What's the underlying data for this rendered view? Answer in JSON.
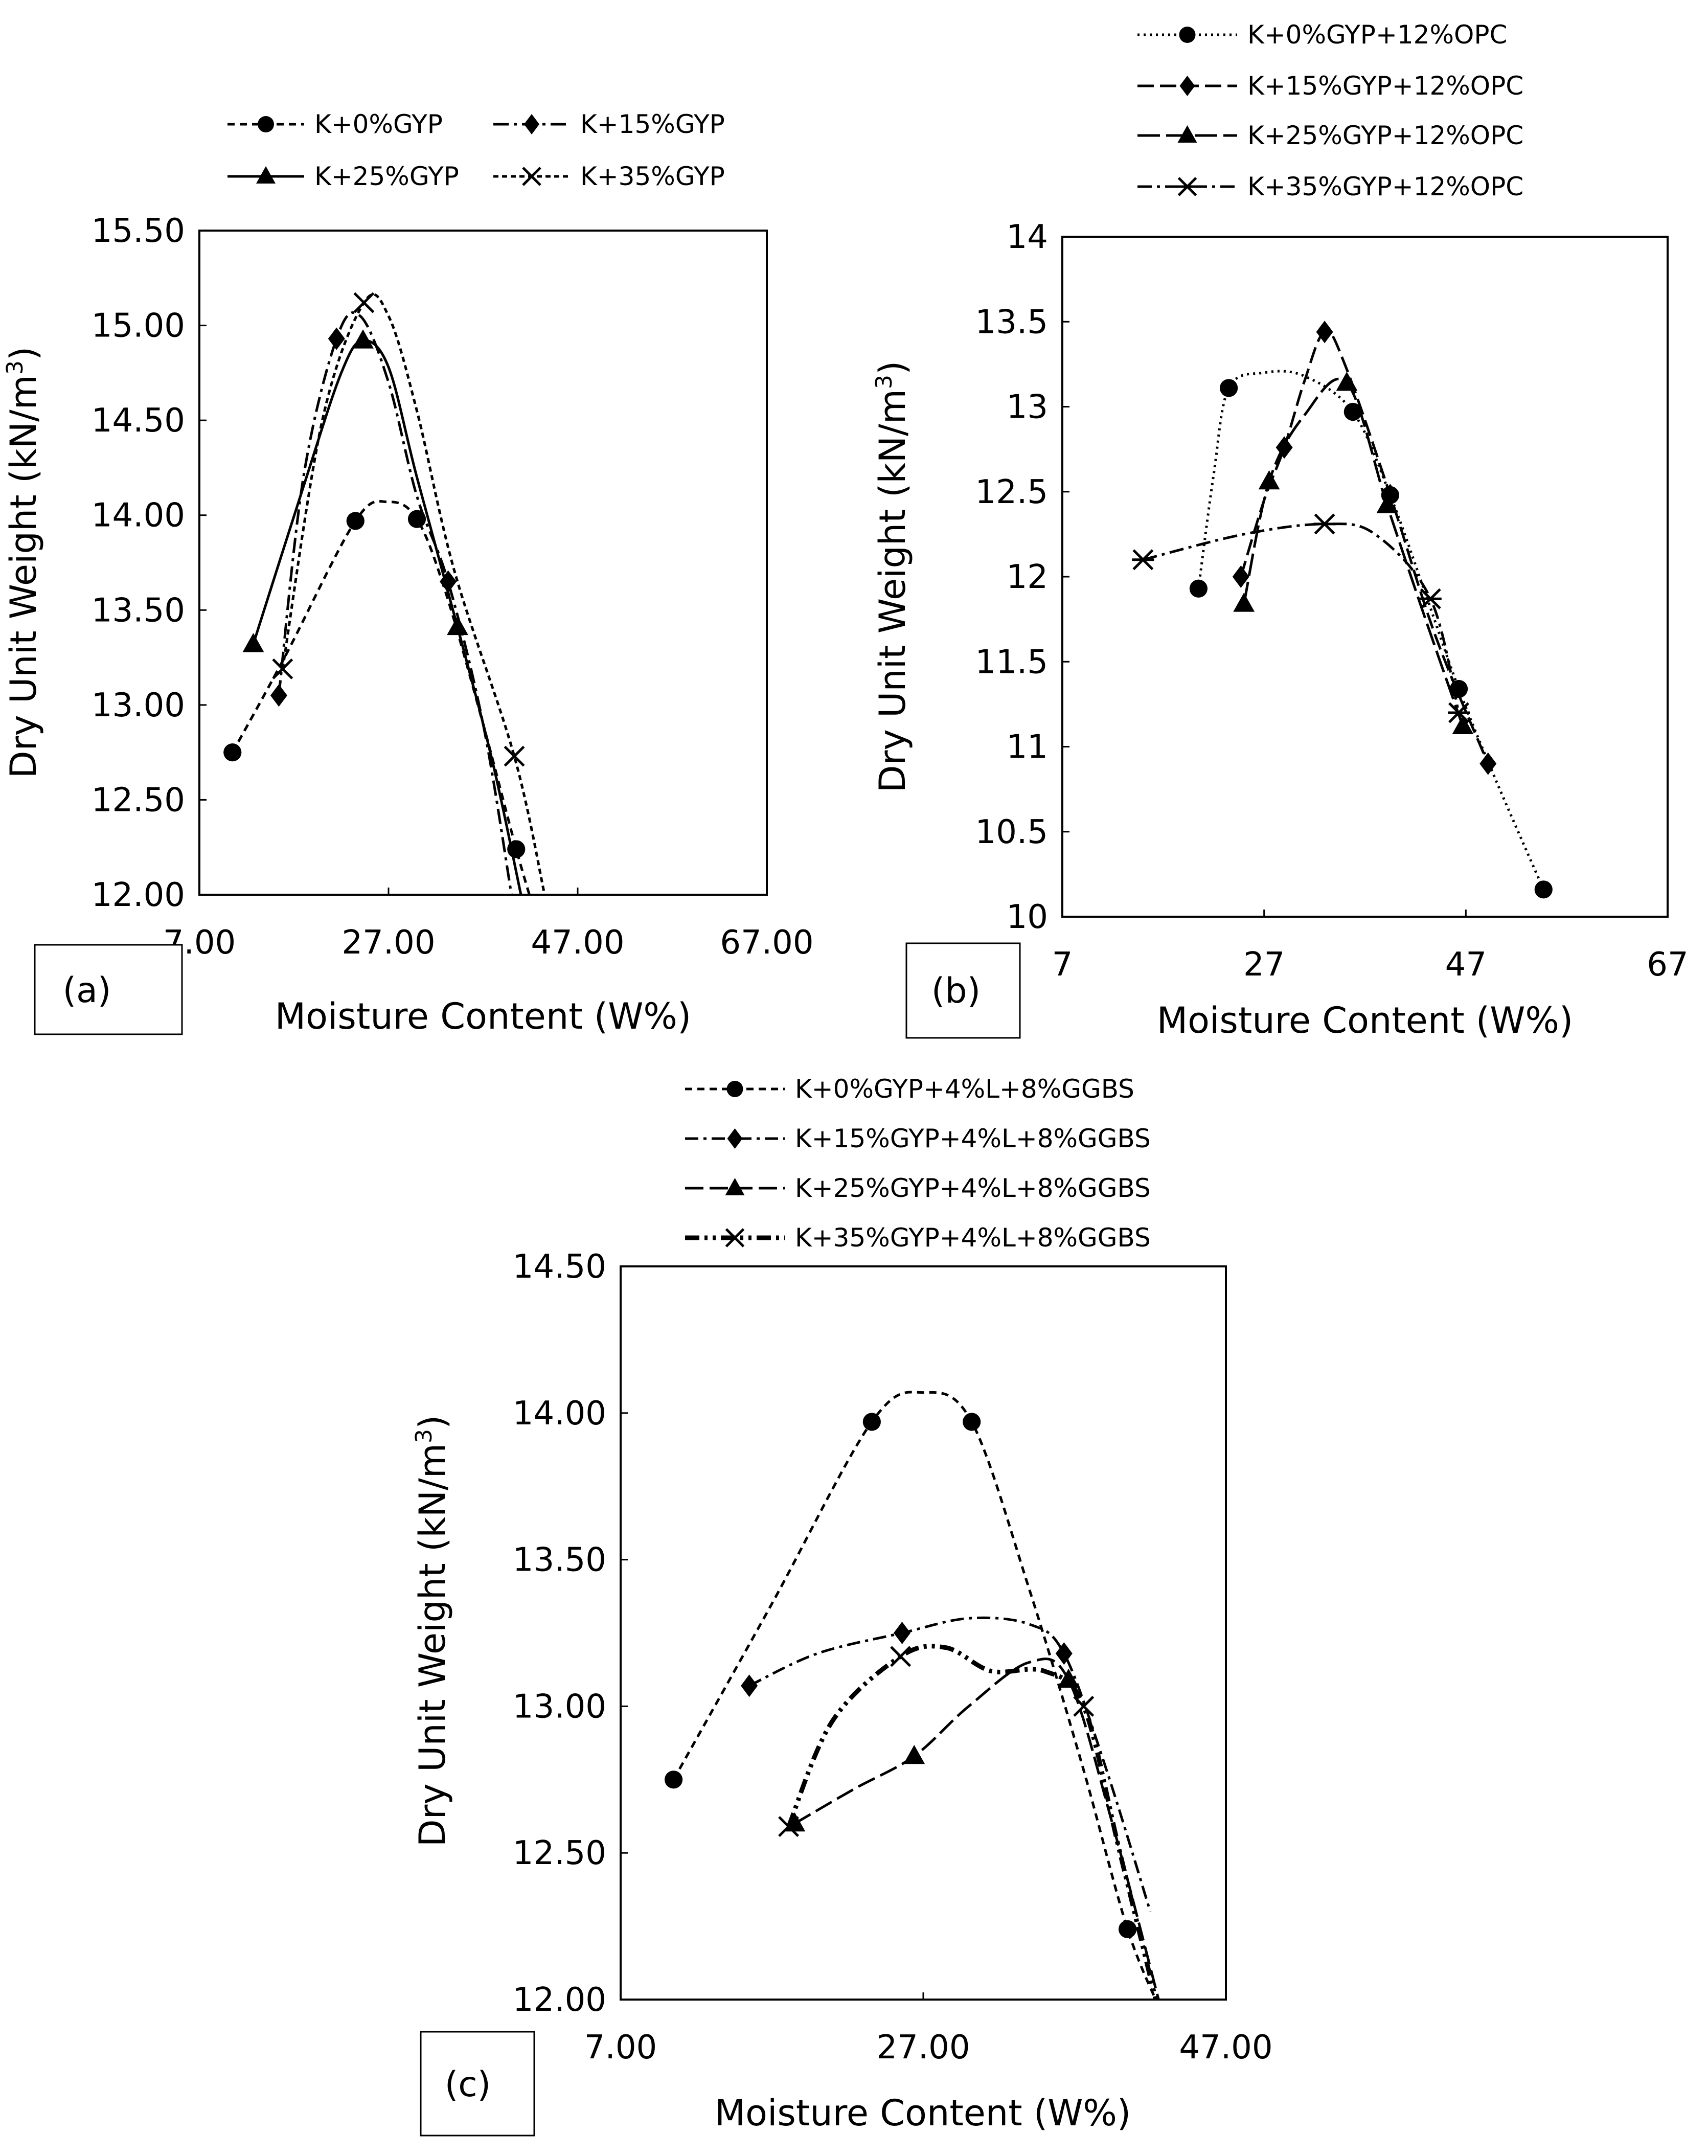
{
  "chart_data": [
    {
      "type": "line",
      "panel_label": "(a)",
      "xlabel": "Moisture Content (W%)",
      "ylabel_main": "Dry Unit Weight (kN/m",
      "ylabel_sup": "3",
      "ylabel_end": ")",
      "xlim": [
        7,
        67
      ],
      "ylim": [
        12,
        15.5
      ],
      "xticks": [
        "7.00",
        "27.00",
        "47.00",
        "67.00"
      ],
      "yticks": [
        "12.00",
        "12.50",
        "13.00",
        "13.50",
        "14.00",
        "14.50",
        "15.00",
        "15.50"
      ],
      "series": [
        {
          "name": "K+0%GYP",
          "marker": "circle",
          "dash": "14,10",
          "x": [
            10.5,
            23.5,
            30,
            40.5
          ],
          "y": [
            12.75,
            13.97,
            13.98,
            12.24
          ]
        },
        {
          "name": "K+15%GYP",
          "marker": "diamond",
          "dash": "30,10,6,10",
          "x": [
            15.4,
            21.5,
            33.3
          ],
          "y": [
            13.05,
            14.93,
            13.65
          ]
        },
        {
          "name": "K+25%GYP",
          "marker": "triangle",
          "dash": "",
          "x": [
            12.7,
            24.3,
            34.3
          ],
          "y": [
            13.32,
            14.92,
            13.41
          ]
        },
        {
          "name": "K+35%GYP",
          "marker": "x",
          "dash": "10,7",
          "x": [
            15.8,
            24.4,
            40.3
          ],
          "y": [
            13.19,
            15.12,
            12.73
          ]
        }
      ],
      "curves": [
        {
          "dash": "14,10",
          "x": [
            10.5,
            16,
            23.5,
            27,
            30,
            33,
            37,
            40.5,
            42.5
          ],
          "y": [
            12.75,
            13.25,
            13.97,
            14.07,
            13.98,
            13.6,
            12.9,
            12.24,
            11.9
          ]
        },
        {
          "dash": "30,10,6,10",
          "x": [
            15.4,
            18,
            21.5,
            24,
            27,
            30,
            33.3,
            37,
            40
          ],
          "y": [
            13.05,
            14.2,
            14.93,
            15.05,
            14.7,
            14.1,
            13.65,
            12.9,
            12.0
          ]
        },
        {
          "dash": "",
          "x": [
            12.7,
            18,
            22,
            24.3,
            27,
            30,
            34.3,
            38,
            41
          ],
          "y": [
            13.32,
            14.15,
            14.75,
            14.92,
            14.78,
            14.2,
            13.41,
            12.7,
            12.0
          ]
        },
        {
          "dash": "10,7",
          "x": [
            15.8,
            20,
            24.4,
            27,
            30,
            34,
            40.3,
            43.5
          ],
          "y": [
            13.19,
            14.5,
            15.12,
            15.05,
            14.55,
            13.7,
            12.73,
            12.0
          ]
        }
      ]
    },
    {
      "type": "line",
      "panel_label": "(b)",
      "xlabel": "Moisture Content (W%)",
      "ylabel_main": "Dry Unit Weight (kN/m",
      "ylabel_sup": "3",
      "ylabel_end": ")",
      "xlim": [
        7,
        67
      ],
      "ylim": [
        10,
        14
      ],
      "xticks": [
        "7",
        "27",
        "47",
        "67"
      ],
      "yticks": [
        "10",
        "10.5",
        "11",
        "11.5",
        "12",
        "12.5",
        "13",
        "13.5",
        "14"
      ],
      "series": [
        {
          "name": "K+0%GYP+12%OPC",
          "marker": "circle",
          "dash": "4,8",
          "x": [
            20.5,
            23.5,
            35.8,
            39.5,
            46.3,
            54.7
          ],
          "y": [
            11.93,
            13.11,
            12.97,
            12.48,
            11.34,
            10.16
          ]
        },
        {
          "name": "K+15%GYP+12%OPC",
          "marker": "diamond",
          "dash": "32,12",
          "x": [
            24.7,
            29,
            33,
            39.5,
            49.2
          ],
          "y": [
            12.0,
            12.76,
            13.44,
            12.48,
            10.9
          ]
        },
        {
          "name": "K+25%GYP+12%OPC",
          "marker": "triangle",
          "dash": "44,12",
          "x": [
            25,
            27.5,
            35.2,
            39.2,
            46.7
          ],
          "y": [
            11.84,
            12.56,
            13.14,
            12.42,
            11.12
          ]
        },
        {
          "name": "K+35%GYP+12%OPC",
          "marker": "star",
          "dash": "28,10,6,10",
          "x": [
            15,
            33,
            43.5,
            46.3
          ],
          "y": [
            12.1,
            12.31,
            11.87,
            11.2
          ]
        }
      ],
      "curves": [
        {
          "dash": "4,8",
          "x": [
            20.5,
            22,
            23.5,
            27,
            31,
            35.8,
            39.5,
            43,
            46.3,
            50,
            54.7
          ],
          "y": [
            11.93,
            12.6,
            13.11,
            13.2,
            13.18,
            12.97,
            12.48,
            11.9,
            11.34,
            10.8,
            10.16
          ]
        },
        {
          "dash": "32,12",
          "x": [
            24.7,
            27,
            29,
            31,
            33,
            35,
            39.5,
            44,
            49.2
          ],
          "y": [
            12.0,
            12.45,
            12.76,
            13.15,
            13.44,
            13.25,
            12.48,
            11.65,
            10.9
          ]
        },
        {
          "dash": "44,12",
          "x": [
            25,
            27.5,
            31,
            35.2,
            39.2,
            43,
            46.7
          ],
          "y": [
            11.84,
            12.56,
            12.95,
            13.14,
            12.42,
            11.75,
            11.12
          ]
        },
        {
          "dash": "28,10,6,10",
          "x": [
            15,
            25,
            33,
            38,
            43.5,
            46.3
          ],
          "y": [
            12.1,
            12.25,
            12.31,
            12.25,
            11.87,
            11.2
          ]
        }
      ]
    },
    {
      "type": "line",
      "panel_label": "(c)",
      "xlabel": "Moisture Content (W%)",
      "ylabel_main": "Dry Unit Weight (kN/m",
      "ylabel_sup": "3",
      "ylabel_end": ")",
      "xlim": [
        7,
        47
      ],
      "ylim": [
        12,
        14.5
      ],
      "xticks": [
        "7.00",
        "27.00",
        "47.00"
      ],
      "yticks": [
        "12.00",
        "12.50",
        "13.00",
        "13.50",
        "14.00",
        "14.50"
      ],
      "series": [
        {
          "name": "K+0%GYP+4%L+8%GGBS",
          "marker": "circle",
          "dash": "14,10",
          "x": [
            10.5,
            23.6,
            30.2,
            40.5
          ],
          "y": [
            12.75,
            13.97,
            13.97,
            12.24
          ]
        },
        {
          "name": "K+15%GYP+4%L+8%GGBS",
          "marker": "diamond",
          "dash": "26,10,6,10",
          "x": [
            15.5,
            25.6,
            36.3
          ],
          "y": [
            13.07,
            13.25,
            13.18
          ]
        },
        {
          "name": "K+25%GYP+4%L+8%GGBS",
          "marker": "triangle",
          "dash": "36,12",
          "x": [
            18.5,
            26.4,
            36.6
          ],
          "y": [
            12.6,
            12.83,
            13.09
          ]
        },
        {
          "name": "K+35%GYP+4%L+8%GGBS",
          "marker": "x",
          "dash": "28,10,6,10,6,10",
          "x": [
            18.1,
            25.5,
            37.6
          ],
          "y": [
            12.59,
            13.17,
            13.0
          ]
        }
      ],
      "curves": [
        {
          "dash": "14,10",
          "x": [
            10.5,
            17,
            23.6,
            27,
            30.2,
            34,
            37.5,
            40.5,
            42.8
          ],
          "y": [
            12.75,
            13.35,
            13.97,
            14.07,
            13.97,
            13.4,
            12.8,
            12.24,
            11.95
          ]
        },
        {
          "dash": "26,10,6,10",
          "x": [
            15.5,
            20,
            25.6,
            30,
            34,
            36.3,
            39,
            42
          ],
          "y": [
            13.07,
            13.18,
            13.25,
            13.3,
            13.28,
            13.18,
            12.8,
            12.3
          ]
        },
        {
          "dash": "36,12",
          "x": [
            18.5,
            22.5,
            26.4,
            30,
            34,
            36.6,
            39.5,
            42.8
          ],
          "y": [
            12.6,
            12.72,
            12.83,
            13.0,
            13.15,
            13.09,
            12.6,
            11.95
          ]
        },
        {
          "dash": "28,10,6,10,6,10",
          "x": [
            18.1,
            21,
            25.5,
            28.5,
            31.5,
            35,
            37.6,
            40,
            42.6
          ],
          "y": [
            12.59,
            12.95,
            13.17,
            13.2,
            13.12,
            13.12,
            13.0,
            12.5,
            11.95
          ]
        }
      ]
    }
  ]
}
